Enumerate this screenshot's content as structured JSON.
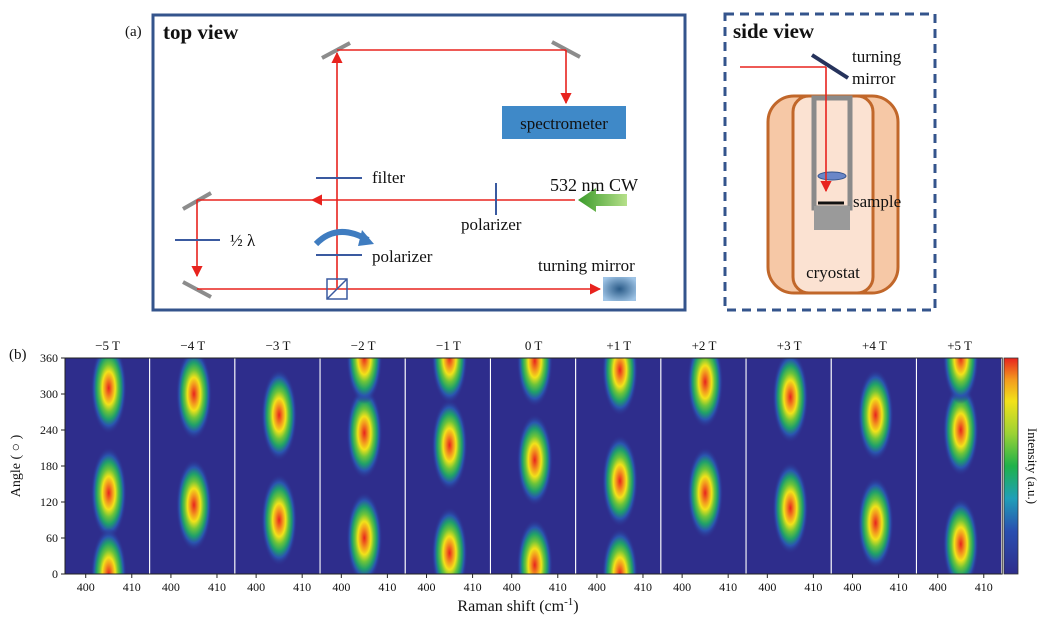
{
  "panel_a": {
    "label": "(a)",
    "top_view": {
      "title": "top view",
      "spectrometer": "spectrometer",
      "filter": "filter",
      "laser": "532 nm CW",
      "polarizer_1": "polarizer",
      "half_wave": "½ λ",
      "polarizer_2": "polarizer",
      "turning_mirror": "turning mirror"
    },
    "side_view": {
      "title": "side view",
      "turning_mirror_line1": "turning",
      "turning_mirror_line2": "mirror",
      "sample": "sample",
      "cryostat": "cryostat"
    }
  },
  "panel_b": {
    "label": "(b)",
    "fields": [
      "−5 T",
      "−4 T",
      "−3 T",
      "−2 T",
      "−1 T",
      "0 T",
      "+1 T",
      "+2 T",
      "+3 T",
      "+4 T",
      "+5 T"
    ],
    "y_label": "Angle ( ○ )",
    "y_ticks": [
      "0",
      "60",
      "120",
      "180",
      "240",
      "300",
      "360"
    ],
    "x_ticks": [
      "400",
      "410"
    ],
    "x_label": "Raman shift (cm",
    "x_label_sup": "-1",
    "x_label_end": ")",
    "colorbar_label": "Intensity (a.u.)"
  },
  "chart_data": {
    "type": "heatmap",
    "title": "",
    "xlabel": "Raman shift (cm-1)",
    "ylabel": "Angle ( ○ )",
    "ylim": [
      0,
      360
    ],
    "y_ticks": [
      0,
      60,
      120,
      180,
      240,
      300,
      360
    ],
    "x_ticks": [
      400,
      410
    ],
    "colorbar": "Intensity (a.u.)",
    "peak_raman_shift": 405,
    "panels": [
      {
        "field": "−5 T",
        "peak_angles": [
          310,
          135,
          0
        ]
      },
      {
        "field": "−4 T",
        "peak_angles": [
          300,
          115
        ]
      },
      {
        "field": "−3 T",
        "peak_angles": [
          265,
          90
        ]
      },
      {
        "field": "−2 T",
        "peak_angles": [
          235,
          60,
          360
        ]
      },
      {
        "field": "−1 T",
        "peak_angles": [
          215,
          35,
          360
        ]
      },
      {
        "field": "0 T",
        "peak_angles": [
          190,
          15,
          355
        ]
      },
      {
        "field": "+1 T",
        "peak_angles": [
          340,
          155,
          0
        ]
      },
      {
        "field": "+2 T",
        "peak_angles": [
          320,
          135
        ]
      },
      {
        "field": "+3 T",
        "peak_angles": [
          295,
          110
        ]
      },
      {
        "field": "+4 T",
        "peak_angles": [
          265,
          85
        ]
      },
      {
        "field": "+5 T",
        "peak_angles": [
          240,
          50,
          360
        ]
      }
    ],
    "colors": {
      "low": "#2e2d8c",
      "mid": "#1fb24a",
      "high": "#e8231e"
    }
  }
}
